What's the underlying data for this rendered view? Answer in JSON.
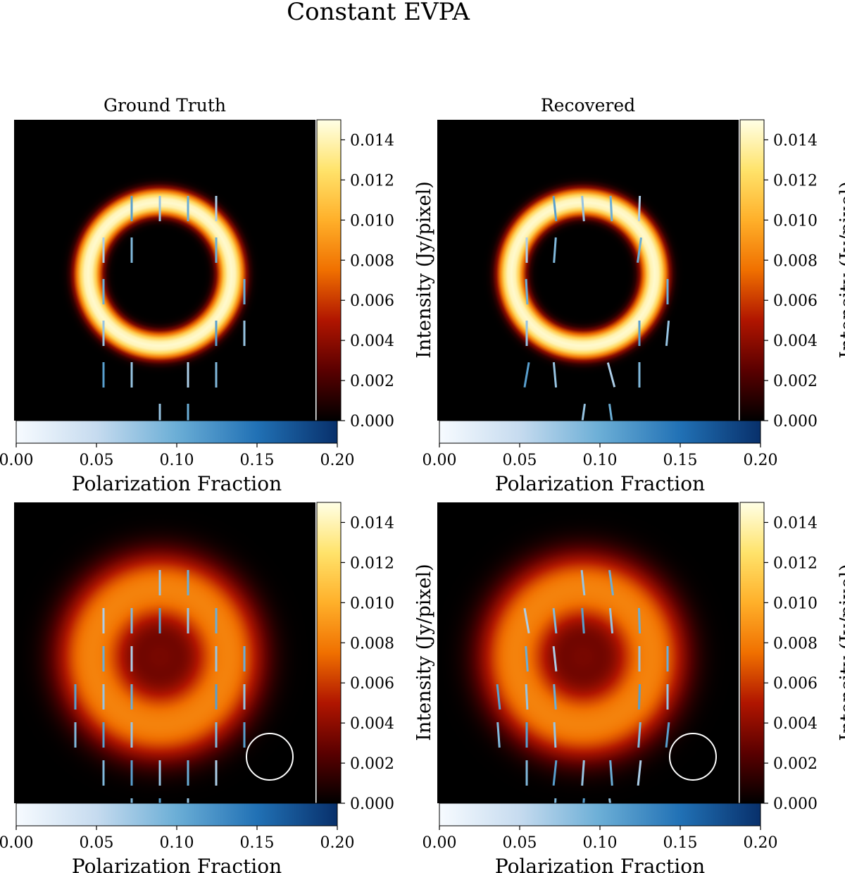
{
  "figure": {
    "title": "Constant EVPA"
  },
  "colormaps": {
    "afmhot_stops": [
      "#000000",
      "#5a0000",
      "#b01500",
      "#f07000",
      "#ffb02a",
      "#ffe36b",
      "#ffffe6"
    ],
    "blues_stops": [
      "#f7fbff",
      "#c6dbef",
      "#6baed6",
      "#2171b5",
      "#08306b"
    ]
  },
  "chart_data": [
    {
      "type": "heatmap",
      "title": "Ground Truth",
      "ring": {
        "peak_intensity": 0.0145,
        "sharpness": "high"
      },
      "colorbar_intensity": {
        "label": "Intensity (Jy/pixel)",
        "ticks": [
          "0.000",
          "0.002",
          "0.004",
          "0.006",
          "0.008",
          "0.010",
          "0.012",
          "0.014"
        ],
        "range": [
          0,
          0.015
        ]
      },
      "colorbar_polfrac": {
        "label": "Polarization Fraction",
        "ticks": [
          "0.00",
          "0.05",
          "0.10",
          "0.15",
          "0.20"
        ],
        "range": [
          0,
          0.2
        ]
      },
      "evpa_ticks": [
        {
          "c": 2,
          "r": 0,
          "a": 0
        },
        {
          "c": 3,
          "r": 0,
          "a": 0
        },
        {
          "c": 4,
          "r": 0,
          "a": 0
        },
        {
          "c": 5,
          "r": 0,
          "a": 0
        },
        {
          "c": 1,
          "r": 1,
          "a": 0
        },
        {
          "c": 2,
          "r": 1,
          "a": 0
        },
        {
          "c": 5,
          "r": 1,
          "a": 0
        },
        {
          "c": 1,
          "r": 2,
          "a": 0
        },
        {
          "c": 6,
          "r": 2,
          "a": 0
        },
        {
          "c": 1,
          "r": 3,
          "a": 0
        },
        {
          "c": 5,
          "r": 3,
          "a": 0
        },
        {
          "c": 6,
          "r": 3,
          "a": 0
        },
        {
          "c": 1,
          "r": 4,
          "a": 0
        },
        {
          "c": 2,
          "r": 4,
          "a": 0
        },
        {
          "c": 4,
          "r": 4,
          "a": 0
        },
        {
          "c": 5,
          "r": 4,
          "a": 0
        },
        {
          "c": 3,
          "r": 5,
          "a": 0
        },
        {
          "c": 4,
          "r": 5,
          "a": 0
        }
      ],
      "beam": false
    },
    {
      "type": "heatmap",
      "title": "Recovered",
      "ring": {
        "peak_intensity": 0.0145,
        "sharpness": "high"
      },
      "colorbar_intensity": {
        "label": "Intensity (Jy/pixel)",
        "ticks": [
          "0.000",
          "0.002",
          "0.004",
          "0.006",
          "0.008",
          "0.010",
          "0.012",
          "0.014"
        ],
        "range": [
          0,
          0.015
        ]
      },
      "colorbar_polfrac": {
        "label": "Polarization Fraction",
        "ticks": [
          "0.00",
          "0.05",
          "0.10",
          "0.15",
          "0.20"
        ],
        "range": [
          0,
          0.2
        ]
      },
      "evpa_ticks": [
        {
          "c": 2,
          "r": 0,
          "a": 6
        },
        {
          "c": 3,
          "r": 0,
          "a": 4
        },
        {
          "c": 4,
          "r": 0,
          "a": 3
        },
        {
          "c": 5,
          "r": 0,
          "a": -2
        },
        {
          "c": 1,
          "r": 1,
          "a": 0
        },
        {
          "c": 2,
          "r": 1,
          "a": -4
        },
        {
          "c": 5,
          "r": 1,
          "a": -8
        },
        {
          "c": 1,
          "r": 2,
          "a": 3
        },
        {
          "c": 6,
          "r": 2,
          "a": 0
        },
        {
          "c": 1,
          "r": 3,
          "a": 0
        },
        {
          "c": 5,
          "r": 3,
          "a": 0
        },
        {
          "c": 6,
          "r": 3,
          "a": -5
        },
        {
          "c": 1,
          "r": 4,
          "a": -10
        },
        {
          "c": 2,
          "r": 4,
          "a": 5
        },
        {
          "c": 4,
          "r": 4,
          "a": 15
        },
        {
          "c": 5,
          "r": 4,
          "a": 0
        },
        {
          "c": 3,
          "r": 5,
          "a": -8
        },
        {
          "c": 4,
          "r": 5,
          "a": 8
        }
      ],
      "beam": false
    },
    {
      "type": "heatmap",
      "title": "",
      "ring": {
        "peak_intensity": 0.0082,
        "sharpness": "low"
      },
      "colorbar_intensity": {
        "label": "Intensity (Jy/pixel)",
        "ticks": [
          "0.000",
          "0.002",
          "0.004",
          "0.006",
          "0.008",
          "0.010",
          "0.012",
          "0.014"
        ],
        "range": [
          0,
          0.015
        ]
      },
      "colorbar_polfrac": {
        "label": "Polarization Fraction",
        "ticks": [
          "0.00",
          "0.05",
          "0.10",
          "0.15",
          "0.20"
        ],
        "range": [
          0,
          0.2
        ]
      },
      "evpa_ticks": [
        {
          "c": 3,
          "r": 0,
          "a": 0
        },
        {
          "c": 4,
          "r": 0,
          "a": 0
        },
        {
          "c": 1,
          "r": 1,
          "a": 0
        },
        {
          "c": 2,
          "r": 1,
          "a": 0
        },
        {
          "c": 3,
          "r": 1,
          "a": 0
        },
        {
          "c": 4,
          "r": 1,
          "a": 0
        },
        {
          "c": 5,
          "r": 1,
          "a": 0
        },
        {
          "c": 1,
          "r": 2,
          "a": 0
        },
        {
          "c": 2,
          "r": 2,
          "a": 0
        },
        {
          "c": 5,
          "r": 2,
          "a": 0
        },
        {
          "c": 6,
          "r": 2,
          "a": 0
        },
        {
          "c": 0,
          "r": 3,
          "a": 0
        },
        {
          "c": 1,
          "r": 3,
          "a": 0
        },
        {
          "c": 2,
          "r": 3,
          "a": 0
        },
        {
          "c": 5,
          "r": 3,
          "a": 0
        },
        {
          "c": 6,
          "r": 3,
          "a": 0
        },
        {
          "c": 0,
          "r": 4,
          "a": 0
        },
        {
          "c": 1,
          "r": 4,
          "a": 0
        },
        {
          "c": 2,
          "r": 4,
          "a": 0
        },
        {
          "c": 5,
          "r": 4,
          "a": 0
        },
        {
          "c": 6,
          "r": 4,
          "a": 0
        },
        {
          "c": 1,
          "r": 5,
          "a": 0
        },
        {
          "c": 2,
          "r": 5,
          "a": 0
        },
        {
          "c": 3,
          "r": 5,
          "a": 0
        },
        {
          "c": 4,
          "r": 5,
          "a": 0
        },
        {
          "c": 5,
          "r": 5,
          "a": 0
        },
        {
          "c": 2,
          "r": 6,
          "a": 0
        },
        {
          "c": 3,
          "r": 6,
          "a": 0
        },
        {
          "c": 4,
          "r": 6,
          "a": 0
        }
      ],
      "beam": true
    },
    {
      "type": "heatmap",
      "title": "",
      "ring": {
        "peak_intensity": 0.0082,
        "sharpness": "low"
      },
      "colorbar_intensity": {
        "label": "Intensity (Jy/pixel)",
        "ticks": [
          "0.000",
          "0.002",
          "0.004",
          "0.006",
          "0.008",
          "0.010",
          "0.012",
          "0.014"
        ],
        "range": [
          0,
          0.015
        ]
      },
      "colorbar_polfrac": {
        "label": "Polarization Fraction",
        "ticks": [
          "0.00",
          "0.05",
          "0.10",
          "0.15",
          "0.20"
        ],
        "range": [
          0,
          0.2
        ]
      },
      "evpa_ticks": [
        {
          "c": 3,
          "r": 0,
          "a": 6
        },
        {
          "c": 4,
          "r": 0,
          "a": 8
        },
        {
          "c": 1,
          "r": 1,
          "a": 10
        },
        {
          "c": 2,
          "r": 1,
          "a": 6
        },
        {
          "c": 3,
          "r": 1,
          "a": 4
        },
        {
          "c": 4,
          "r": 1,
          "a": 5
        },
        {
          "c": 5,
          "r": 1,
          "a": 2
        },
        {
          "c": 1,
          "r": 2,
          "a": 4
        },
        {
          "c": 2,
          "r": 2,
          "a": 6
        },
        {
          "c": 5,
          "r": 2,
          "a": 0
        },
        {
          "c": 6,
          "r": 2,
          "a": 0
        },
        {
          "c": 0,
          "r": 3,
          "a": 6
        },
        {
          "c": 1,
          "r": 3,
          "a": 3
        },
        {
          "c": 2,
          "r": 3,
          "a": 4
        },
        {
          "c": 5,
          "r": 3,
          "a": -2
        },
        {
          "c": 6,
          "r": 3,
          "a": 0
        },
        {
          "c": 0,
          "r": 4,
          "a": 4
        },
        {
          "c": 1,
          "r": 4,
          "a": 0
        },
        {
          "c": 2,
          "r": 4,
          "a": 3
        },
        {
          "c": 5,
          "r": 4,
          "a": -4
        },
        {
          "c": 6,
          "r": 4,
          "a": -6
        },
        {
          "c": 1,
          "r": 5,
          "a": 0
        },
        {
          "c": 2,
          "r": 5,
          "a": -6
        },
        {
          "c": 3,
          "r": 5,
          "a": -4
        },
        {
          "c": 4,
          "r": 5,
          "a": 4
        },
        {
          "c": 5,
          "r": 5,
          "a": -6
        },
        {
          "c": 2,
          "r": 6,
          "a": -3
        },
        {
          "c": 3,
          "r": 6,
          "a": -4
        },
        {
          "c": 4,
          "r": 6,
          "a": 8
        }
      ],
      "beam": true
    }
  ]
}
